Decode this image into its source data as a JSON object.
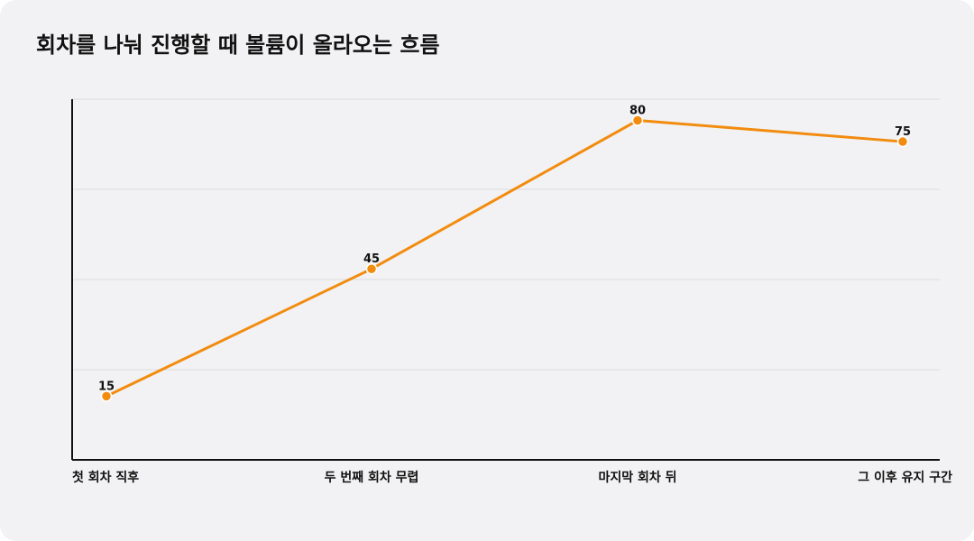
{
  "chart_data": {
    "type": "line",
    "title": "회차를 나눠 진행할 때 볼륨이 올라오는 흐름",
    "categories": [
      "첫 회차 직후",
      "두 번째 회차 무렵",
      "마지막 회차 뒤",
      "그 이후 유지 구간"
    ],
    "series": [
      {
        "values": [
          15,
          45,
          80,
          75
        ]
      }
    ],
    "ylim": [
      0,
      85
    ],
    "gridlines": [
      20,
      40,
      60,
      80
    ],
    "grid": true,
    "legend": "none",
    "colors": {
      "line": "#f28c0f",
      "marker": "#f28c0f",
      "marker_stroke": "#ffffff",
      "grid": "#dcdcdf",
      "axis": "#111111"
    }
  }
}
